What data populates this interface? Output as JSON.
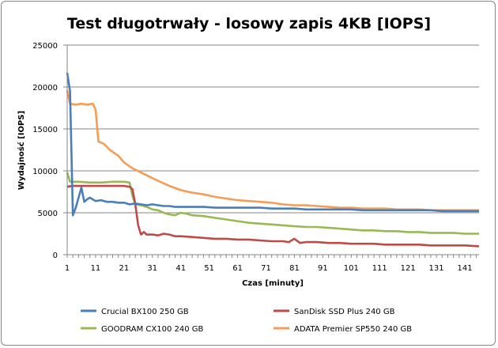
{
  "chart_data": {
    "type": "line",
    "title": "Test długotrwały - losowy zapis 4KB [IOPS]",
    "xlabel": "Czas [minuty]",
    "ylabel": "Wydajność [IOPS]",
    "xlim": [
      1,
      146
    ],
    "ylim": [
      0,
      25000
    ],
    "xticks": [
      1,
      11,
      21,
      31,
      41,
      51,
      61,
      71,
      81,
      91,
      101,
      111,
      121,
      131,
      141
    ],
    "xtick_labels": [
      "1",
      "11",
      "21",
      "31",
      "41",
      "51",
      "61",
      "71",
      "81",
      "91",
      "101",
      "111",
      "121",
      "131",
      "141"
    ],
    "yticks": [
      0,
      5000,
      10000,
      15000,
      20000,
      25000
    ],
    "ytick_labels": [
      "0",
      "5000",
      "10000",
      "15000",
      "20000",
      "25000"
    ],
    "grid": "horizontal",
    "legend_position": "bottom",
    "series": [
      {
        "name": "Crucial BX100 250 GB",
        "color": "#4a7ebb",
        "points": [
          [
            1,
            21700
          ],
          [
            2,
            19500
          ],
          [
            3,
            4700
          ],
          [
            4,
            5600
          ],
          [
            5,
            6800
          ],
          [
            6,
            8000
          ],
          [
            7,
            6300
          ],
          [
            8,
            6600
          ],
          [
            9,
            6800
          ],
          [
            10,
            6600
          ],
          [
            11,
            6400
          ],
          [
            13,
            6500
          ],
          [
            15,
            6300
          ],
          [
            17,
            6300
          ],
          [
            19,
            6200
          ],
          [
            21,
            6200
          ],
          [
            23,
            6000
          ],
          [
            25,
            6100
          ],
          [
            27,
            6000
          ],
          [
            29,
            5900
          ],
          [
            31,
            6000
          ],
          [
            33,
            5900
          ],
          [
            35,
            5800
          ],
          [
            37,
            5800
          ],
          [
            39,
            5700
          ],
          [
            41,
            5700
          ],
          [
            45,
            5700
          ],
          [
            49,
            5700
          ],
          [
            53,
            5600
          ],
          [
            57,
            5600
          ],
          [
            61,
            5600
          ],
          [
            65,
            5600
          ],
          [
            69,
            5600
          ],
          [
            73,
            5500
          ],
          [
            77,
            5500
          ],
          [
            81,
            5500
          ],
          [
            85,
            5400
          ],
          [
            89,
            5400
          ],
          [
            93,
            5400
          ],
          [
            97,
            5400
          ],
          [
            101,
            5400
          ],
          [
            105,
            5300
          ],
          [
            109,
            5300
          ],
          [
            113,
            5300
          ],
          [
            117,
            5300
          ],
          [
            121,
            5300
          ],
          [
            125,
            5300
          ],
          [
            129,
            5300
          ],
          [
            133,
            5200
          ],
          [
            137,
            5200
          ],
          [
            141,
            5200
          ],
          [
            146,
            5200
          ]
        ]
      },
      {
        "name": "SanDisk SSD Plus 240 GB",
        "color": "#be4b48",
        "points": [
          [
            1,
            8100
          ],
          [
            3,
            8200
          ],
          [
            5,
            8200
          ],
          [
            7,
            8200
          ],
          [
            9,
            8200
          ],
          [
            11,
            8200
          ],
          [
            13,
            8200
          ],
          [
            15,
            8200
          ],
          [
            17,
            8200
          ],
          [
            19,
            8200
          ],
          [
            21,
            8200
          ],
          [
            23,
            8100
          ],
          [
            24,
            7800
          ],
          [
            25,
            6000
          ],
          [
            26,
            3500
          ],
          [
            27,
            2400
          ],
          [
            28,
            2700
          ],
          [
            29,
            2400
          ],
          [
            31,
            2400
          ],
          [
            33,
            2300
          ],
          [
            35,
            2500
          ],
          [
            37,
            2400
          ],
          [
            39,
            2200
          ],
          [
            41,
            2200
          ],
          [
            45,
            2100
          ],
          [
            49,
            2000
          ],
          [
            53,
            1900
          ],
          [
            57,
            1900
          ],
          [
            61,
            1800
          ],
          [
            65,
            1800
          ],
          [
            69,
            1700
          ],
          [
            73,
            1600
          ],
          [
            77,
            1600
          ],
          [
            79,
            1500
          ],
          [
            81,
            1900
          ],
          [
            83,
            1400
          ],
          [
            85,
            1500
          ],
          [
            89,
            1500
          ],
          [
            93,
            1400
          ],
          [
            97,
            1400
          ],
          [
            101,
            1300
          ],
          [
            105,
            1300
          ],
          [
            109,
            1300
          ],
          [
            113,
            1200
          ],
          [
            117,
            1200
          ],
          [
            121,
            1200
          ],
          [
            125,
            1200
          ],
          [
            129,
            1100
          ],
          [
            133,
            1100
          ],
          [
            137,
            1100
          ],
          [
            141,
            1100
          ],
          [
            146,
            1000
          ]
        ]
      },
      {
        "name": "GOODRAM CX100 240 GB",
        "color": "#98b954",
        "points": [
          [
            1,
            9800
          ],
          [
            2,
            8700
          ],
          [
            5,
            8700
          ],
          [
            9,
            8600
          ],
          [
            13,
            8600
          ],
          [
            17,
            8700
          ],
          [
            21,
            8700
          ],
          [
            23,
            8600
          ],
          [
            24,
            7000
          ],
          [
            25,
            6000
          ],
          [
            27,
            5900
          ],
          [
            29,
            5700
          ],
          [
            31,
            5400
          ],
          [
            33,
            5300
          ],
          [
            35,
            5000
          ],
          [
            37,
            4800
          ],
          [
            39,
            4700
          ],
          [
            41,
            5000
          ],
          [
            43,
            4900
          ],
          [
            45,
            4700
          ],
          [
            49,
            4600
          ],
          [
            53,
            4400
          ],
          [
            57,
            4200
          ],
          [
            61,
            4000
          ],
          [
            65,
            3800
          ],
          [
            69,
            3700
          ],
          [
            73,
            3600
          ],
          [
            77,
            3500
          ],
          [
            81,
            3400
          ],
          [
            85,
            3300
          ],
          [
            89,
            3300
          ],
          [
            93,
            3200
          ],
          [
            97,
            3100
          ],
          [
            101,
            3000
          ],
          [
            105,
            2900
          ],
          [
            109,
            2900
          ],
          [
            113,
            2800
          ],
          [
            117,
            2800
          ],
          [
            121,
            2700
          ],
          [
            125,
            2700
          ],
          [
            129,
            2600
          ],
          [
            133,
            2600
          ],
          [
            137,
            2600
          ],
          [
            141,
            2500
          ],
          [
            146,
            2500
          ]
        ]
      },
      {
        "name": "ADATA Premier SP550 240 GB",
        "color": "#f59d56",
        "points": [
          [
            1,
            19600
          ],
          [
            2,
            18000
          ],
          [
            4,
            17900
          ],
          [
            6,
            18000
          ],
          [
            8,
            17900
          ],
          [
            10,
            18000
          ],
          [
            11,
            17300
          ],
          [
            12,
            13500
          ],
          [
            14,
            13200
          ],
          [
            16,
            12500
          ],
          [
            19,
            11800
          ],
          [
            21,
            11000
          ],
          [
            24,
            10300
          ],
          [
            27,
            9800
          ],
          [
            30,
            9300
          ],
          [
            33,
            8800
          ],
          [
            37,
            8200
          ],
          [
            41,
            7700
          ],
          [
            45,
            7400
          ],
          [
            49,
            7200
          ],
          [
            53,
            6900
          ],
          [
            57,
            6700
          ],
          [
            61,
            6500
          ],
          [
            65,
            6400
          ],
          [
            69,
            6300
          ],
          [
            73,
            6200
          ],
          [
            77,
            6000
          ],
          [
            81,
            5900
          ],
          [
            85,
            5900
          ],
          [
            89,
            5800
          ],
          [
            93,
            5700
          ],
          [
            97,
            5600
          ],
          [
            101,
            5600
          ],
          [
            105,
            5500
          ],
          [
            109,
            5500
          ],
          [
            113,
            5500
          ],
          [
            117,
            5400
          ],
          [
            121,
            5400
          ],
          [
            125,
            5400
          ],
          [
            129,
            5300
          ],
          [
            133,
            5300
          ],
          [
            137,
            5300
          ],
          [
            141,
            5300
          ],
          [
            146,
            5300
          ]
        ]
      }
    ]
  }
}
